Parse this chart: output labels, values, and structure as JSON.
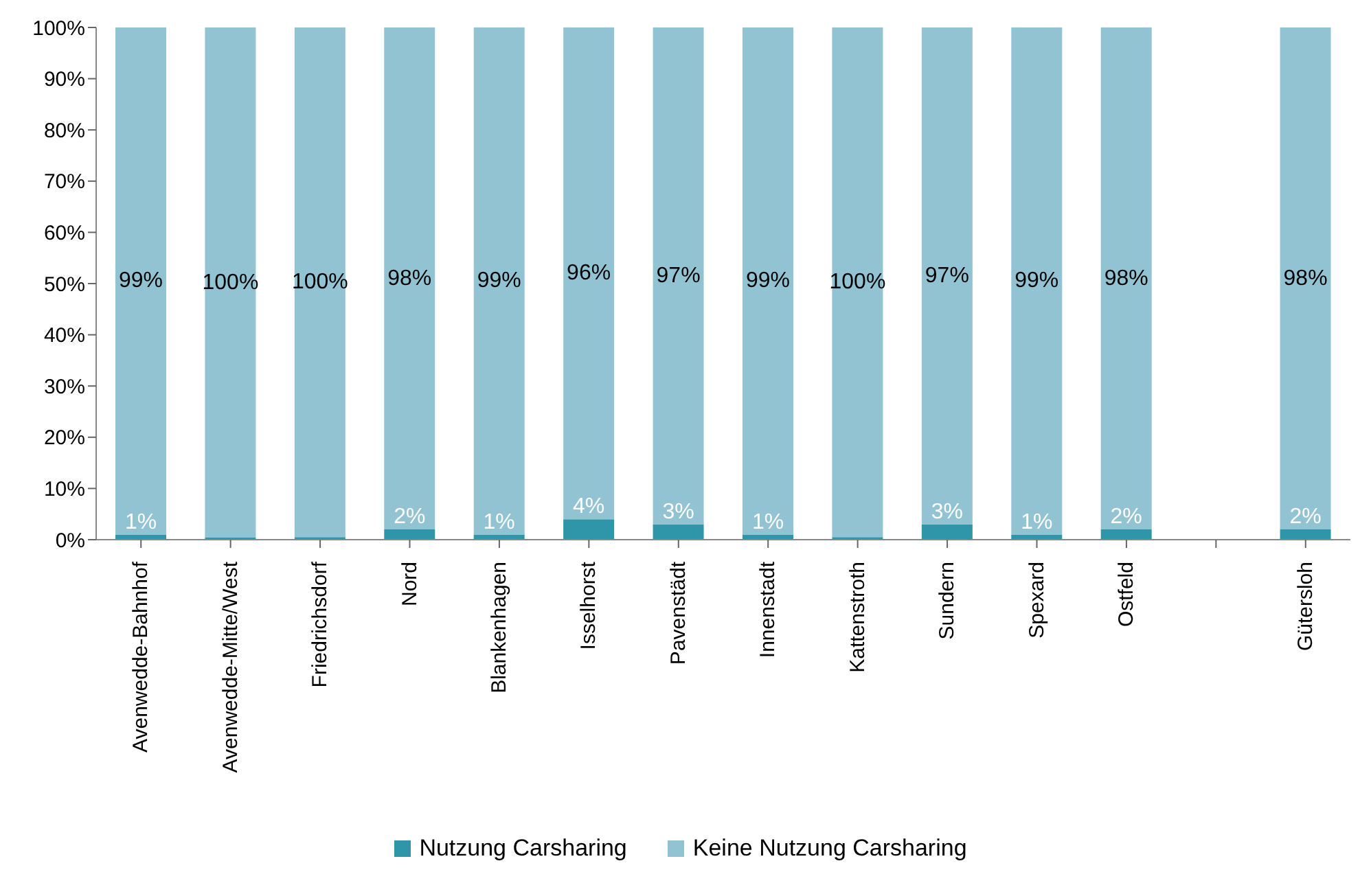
{
  "chart_data": {
    "type": "bar",
    "stacked": true,
    "categories": [
      "Avenwedde-Bahnhof",
      "Avenwedde-Mitte/West",
      "Friedrichsdorf",
      "Nord",
      "Blankenhagen",
      "Isselhorst",
      "Pavenstädt",
      "Innenstadt",
      "Kattenstroth",
      "Sundern",
      "Spexard",
      "Ostfeld",
      null,
      "Gütersloh"
    ],
    "series": [
      {
        "name": "Nutzung Carsharing",
        "color": "#2e96a8",
        "values": [
          1,
          0.4,
          0.5,
          2,
          1,
          4,
          3,
          1,
          0.5,
          3,
          1,
          2,
          null,
          2
        ],
        "value_labels": [
          "1%",
          null,
          null,
          "2%",
          "1%",
          "4%",
          "3%",
          "1%",
          null,
          "3%",
          "1%",
          "2%",
          null,
          "2%"
        ]
      },
      {
        "name": "Keine Nutzung Carsharing",
        "color": "#92c3d3",
        "values": [
          99,
          99.6,
          99.5,
          98,
          99,
          96,
          97,
          99,
          99.5,
          97,
          99,
          98,
          null,
          98
        ],
        "value_labels": [
          "99%",
          "100%",
          "100%",
          "98%",
          "99%",
          "96%",
          "97%",
          "99%",
          "100%",
          "97%",
          "99%",
          "98%",
          null,
          "98%"
        ]
      }
    ],
    "ylim": [
      0,
      100
    ],
    "yticks": [
      {
        "value": 0,
        "label": "0%"
      },
      {
        "value": 10,
        "label": "10%"
      },
      {
        "value": 20,
        "label": "20%"
      },
      {
        "value": 30,
        "label": "30%"
      },
      {
        "value": 40,
        "label": "40%"
      },
      {
        "value": 50,
        "label": "50%"
      },
      {
        "value": 60,
        "label": "60%"
      },
      {
        "value": 70,
        "label": "70%"
      },
      {
        "value": 80,
        "label": "80%"
      },
      {
        "value": 90,
        "label": "90%"
      },
      {
        "value": 100,
        "label": "100%"
      }
    ],
    "grid": false,
    "legend": "bottom"
  }
}
